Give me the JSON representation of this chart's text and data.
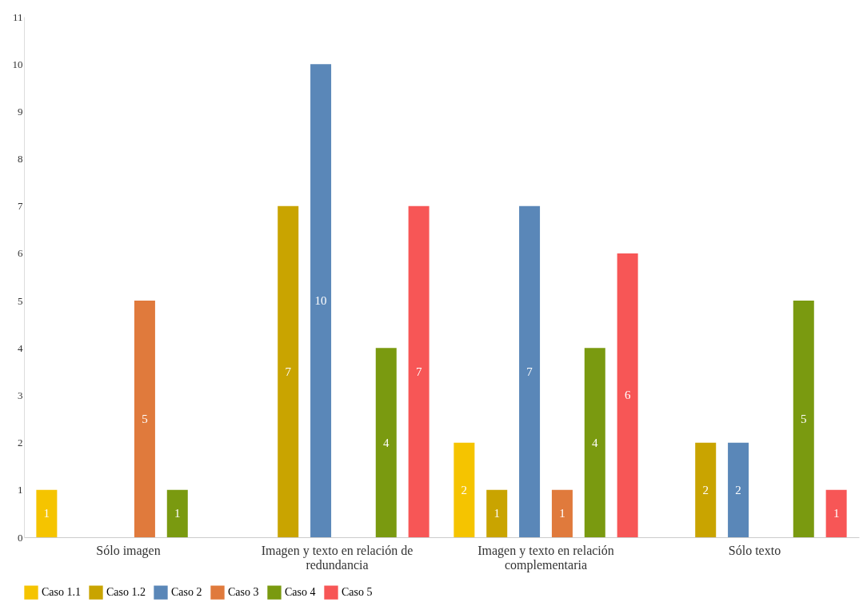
{
  "chart_data": {
    "type": "bar",
    "categories": [
      "Sólo imagen",
      "Imagen y texto en relación de redundancia",
      "Imagen y texto en relación complementaria",
      "Sólo texto"
    ],
    "series": [
      {
        "name": "Caso 1.1",
        "color": "#f5c400",
        "values": [
          1,
          null,
          2,
          null
        ]
      },
      {
        "name": "Caso 1.2",
        "color": "#c9a400",
        "values": [
          null,
          7,
          1,
          2
        ]
      },
      {
        "name": "Caso 2",
        "color": "#5a87b8",
        "values": [
          null,
          10,
          7,
          2
        ]
      },
      {
        "name": "Caso 3",
        "color": "#e07a3c",
        "values": [
          5,
          null,
          1,
          null
        ]
      },
      {
        "name": "Caso 4",
        "color": "#7a9a10",
        "values": [
          1,
          4,
          4,
          5
        ]
      },
      {
        "name": "Caso 5",
        "color": "#f75656",
        "values": [
          null,
          7,
          6,
          1
        ]
      }
    ],
    "ylim": [
      0,
      11
    ],
    "yticks": [
      0,
      1,
      2,
      3,
      4,
      5,
      6,
      7,
      8,
      9,
      10,
      11
    ],
    "grid": false,
    "legend": "bottom",
    "data_labels": true
  }
}
